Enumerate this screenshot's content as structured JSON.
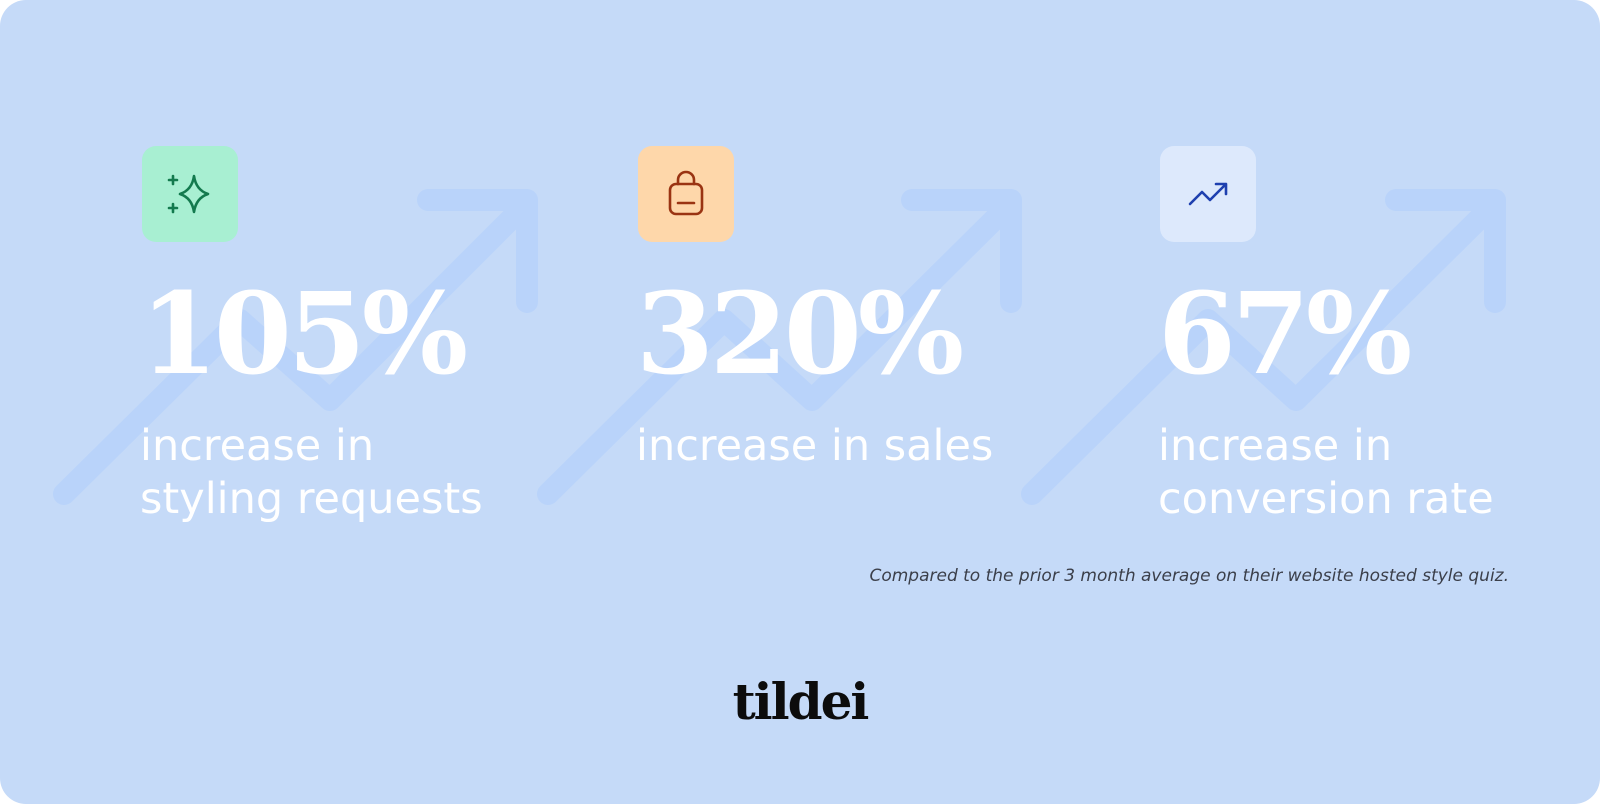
{
  "stats": [
    {
      "value": "105%",
      "lines": [
        "increase in",
        "styling requests"
      ]
    },
    {
      "value": "320%",
      "lines": [
        "increase in sales"
      ]
    },
    {
      "value": "67%",
      "lines": [
        "increase in",
        "conversion rate"
      ]
    }
  ],
  "footnote": "Compared to the prior 3 month average on their website hosted style quiz.",
  "brand": "tildei"
}
